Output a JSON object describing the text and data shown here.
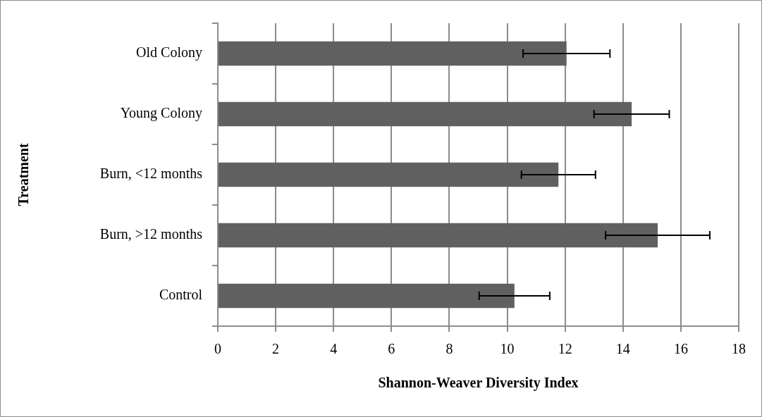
{
  "chart_data": {
    "type": "bar",
    "orientation": "horizontal",
    "xlabel": "Shannon-Weaver Diversity Index",
    "ylabel": "Treatment",
    "categories": [
      "Old Colony",
      "Young Colony",
      "Burn, <12 months",
      "Burn, >12 months",
      "Control"
    ],
    "values": [
      12.05,
      14.3,
      11.77,
      15.2,
      10.25
    ],
    "errors": [
      1.5,
      1.3,
      1.28,
      1.8,
      1.22
    ],
    "color": "#606060",
    "xlim": [
      0,
      18
    ],
    "xticks": [
      0,
      2,
      4,
      6,
      8,
      10,
      12,
      14,
      16,
      18
    ],
    "grid": "x",
    "legend": false
  }
}
